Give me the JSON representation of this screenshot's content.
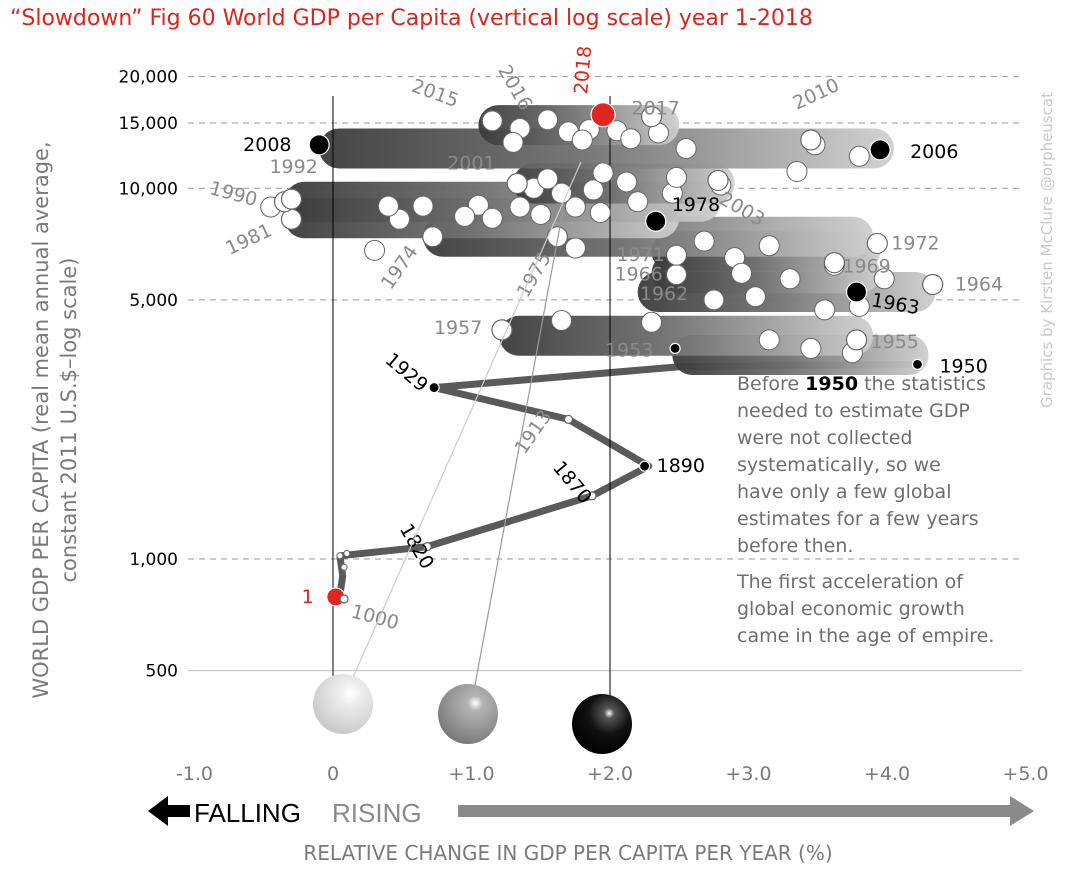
{
  "title": "“Slowdown” Fig 60 World GDP per Capita (vertical log scale) year 1-2018",
  "colors": {
    "title": "#d9251d",
    "highlight": "#d9251d",
    "axis_text": "#7a7a7a",
    "tube_dark": "#3a3a3a",
    "tube_light": "#bdbdbd",
    "arrow": "#8a8a8a"
  },
  "credit": "Graphics by Kirsten McClure @orpheuscat",
  "legend": {
    "falling": "FALLING",
    "rising": "RISING"
  },
  "annotation": {
    "line1_pre": "Before ",
    "line1_bold": "1950",
    "line1_post": " the statistics",
    "lines": [
      "needed to estimate GDP",
      "were not collected",
      "systematically, so we",
      "have only a few global",
      "estimates for a few years",
      "before then."
    ],
    "para2": [
      "The first acceleration of",
      "global economic growth",
      "came in the age of empire."
    ]
  },
  "chart_data": {
    "type": "scatter",
    "title": "“Slowdown” Fig 60 World GDP per Capita (vertical log scale) year 1-2018",
    "xlabel": "RELATIVE CHANGE IN GDP PER CAPITA PER YEAR (%)",
    "ylabel": "WORLD GDP PER CAPITA (real mean annual average, constant 2011 U.S.$–log scale)",
    "ylabel_line1": "WORLD GDP PER CAPITA (real mean annual average,",
    "ylabel_line2": "constant 2011 U.S.$–log scale)",
    "y_scale": "log",
    "xlim": [
      -1.0,
      5.0
    ],
    "ylim": [
      400,
      20000
    ],
    "x_ticks": [
      -1.0,
      0,
      1.0,
      2.0,
      3.0,
      4.0,
      5.0
    ],
    "x_tick_labels": [
      "-1.0",
      "0",
      "+1.0",
      "+2.0",
      "+3.0",
      "+4.0",
      "+5.0"
    ],
    "y_ticks": [
      20000,
      15000,
      10000,
      5000,
      1000,
      500
    ],
    "y_tick_labels": [
      "20,000",
      "15,000",
      "10,000",
      "5,000",
      "1,000",
      "500"
    ],
    "grid": "horizontal dashed",
    "reference_lines": [
      0.0,
      2.0
    ],
    "labeled_points": [
      {
        "label": "1",
        "x": 0.02,
        "y": 790,
        "style": "red"
      },
      {
        "label": "1000",
        "x": 0.08,
        "y": 780,
        "style": "open"
      },
      {
        "label": "1820",
        "x": 0.68,
        "y": 1080,
        "style": "open"
      },
      {
        "label": "1870",
        "x": 1.87,
        "y": 1480,
        "style": "open"
      },
      {
        "label": "1890",
        "x": 2.25,
        "y": 1780,
        "style": "closed"
      },
      {
        "label": "1913",
        "x": 1.7,
        "y": 2380,
        "style": "open"
      },
      {
        "label": "1929",
        "x": 0.73,
        "y": 2900,
        "style": "closed"
      },
      {
        "label": "1950",
        "x": 4.22,
        "y": 3350,
        "style": "closed"
      },
      {
        "label": "1953",
        "x": 2.47,
        "y": 3700,
        "style": "closed"
      },
      {
        "label": "1955",
        "x": 3.78,
        "y": 3900,
        "style": "open"
      },
      {
        "label": "1957",
        "x": 1.22,
        "y": 4150,
        "style": "open"
      },
      {
        "label": "1962",
        "x": 2.75,
        "y": 5000,
        "style": "open"
      },
      {
        "label": "1963",
        "x": 3.78,
        "y": 5250,
        "style": "closed"
      },
      {
        "label": "1964",
        "x": 4.33,
        "y": 5500,
        "style": "open"
      },
      {
        "label": "1966",
        "x": 2.48,
        "y": 5850,
        "style": "open"
      },
      {
        "label": "1969",
        "x": 3.62,
        "y": 6300,
        "style": "open"
      },
      {
        "label": "1971",
        "x": 2.48,
        "y": 6600,
        "style": "open"
      },
      {
        "label": "1972",
        "x": 3.93,
        "y": 7100,
        "style": "open"
      },
      {
        "label": "1974",
        "x": 0.72,
        "y": 7400,
        "style": "open"
      },
      {
        "label": "1975",
        "x": 1.62,
        "y": 7400,
        "style": "open"
      },
      {
        "label": "1978",
        "x": 2.33,
        "y": 8150,
        "style": "closed"
      },
      {
        "label": "1981",
        "x": -0.3,
        "y": 8250,
        "style": "open"
      },
      {
        "label": "1990",
        "x": -0.35,
        "y": 9200,
        "style": "open"
      },
      {
        "label": "1992",
        "x": -0.3,
        "y": 9350,
        "style": "open"
      },
      {
        "label": "2001",
        "x": 1.33,
        "y": 10300,
        "style": "open"
      },
      {
        "label": "2003",
        "x": 2.78,
        "y": 10500,
        "style": "open"
      },
      {
        "label": "2006",
        "x": 3.95,
        "y": 12700,
        "style": "closed"
      },
      {
        "label": "2008",
        "x": -0.1,
        "y": 13100,
        "style": "closed"
      },
      {
        "label": "2010",
        "x": 3.45,
        "y": 13500,
        "style": "open"
      },
      {
        "label": "2015",
        "x": 1.15,
        "y": 15200,
        "style": "open"
      },
      {
        "label": "2016",
        "x": 1.55,
        "y": 15300,
        "style": "open"
      },
      {
        "label": "2017",
        "x": 2.3,
        "y": 15600,
        "style": "open"
      },
      {
        "label": "2018",
        "x": 1.95,
        "y": 15800,
        "style": "red"
      }
    ],
    "unlabeled_points": [
      {
        "x": 0.08,
        "y": 950
      },
      {
        "x": 0.05,
        "y": 1020
      },
      {
        "x": 0.1,
        "y": 1035
      },
      {
        "x": 0.48,
        "y": 8250
      },
      {
        "x": -0.45,
        "y": 8900
      },
      {
        "x": 0.4,
        "y": 8950
      },
      {
        "x": 0.65,
        "y": 8950
      },
      {
        "x": 1.05,
        "y": 9000
      },
      {
        "x": 1.35,
        "y": 8900
      },
      {
        "x": 1.75,
        "y": 8900
      },
      {
        "x": 0.95,
        "y": 8400
      },
      {
        "x": 1.15,
        "y": 8300
      },
      {
        "x": 1.5,
        "y": 8500
      },
      {
        "x": 1.93,
        "y": 8600
      },
      {
        "x": 2.2,
        "y": 9200
      },
      {
        "x": 2.45,
        "y": 9700
      },
      {
        "x": 2.8,
        "y": 10200
      },
      {
        "x": 1.65,
        "y": 9700
      },
      {
        "x": 1.45,
        "y": 10000
      },
      {
        "x": 1.88,
        "y": 9900
      },
      {
        "x": 2.12,
        "y": 10400
      },
      {
        "x": 2.48,
        "y": 10700
      },
      {
        "x": 1.55,
        "y": 10600
      },
      {
        "x": 1.95,
        "y": 11000
      },
      {
        "x": 0.3,
        "y": 6800
      },
      {
        "x": 1.75,
        "y": 6900
      },
      {
        "x": 2.68,
        "y": 7200
      },
      {
        "x": 3.15,
        "y": 7000
      },
      {
        "x": 2.9,
        "y": 6500
      },
      {
        "x": 3.62,
        "y": 6200
      },
      {
        "x": 2.95,
        "y": 5900
      },
      {
        "x": 3.3,
        "y": 5700
      },
      {
        "x": 3.98,
        "y": 5700
      },
      {
        "x": 3.05,
        "y": 5100
      },
      {
        "x": 3.55,
        "y": 4700
      },
      {
        "x": 3.8,
        "y": 4800
      },
      {
        "x": 1.65,
        "y": 4400
      },
      {
        "x": 2.3,
        "y": 4350
      },
      {
        "x": 3.15,
        "y": 3900
      },
      {
        "x": 3.45,
        "y": 3700
      },
      {
        "x": 3.75,
        "y": 3600
      },
      {
        "x": 1.35,
        "y": 14500
      },
      {
        "x": 1.7,
        "y": 14200
      },
      {
        "x": 1.85,
        "y": 14400
      },
      {
        "x": 2.05,
        "y": 14300
      },
      {
        "x": 2.35,
        "y": 14100
      },
      {
        "x": 1.8,
        "y": 13500
      },
      {
        "x": 2.15,
        "y": 13600
      },
      {
        "x": 1.3,
        "y": 13300
      },
      {
        "x": 2.55,
        "y": 12800
      },
      {
        "x": 3.48,
        "y": 13100
      },
      {
        "x": 3.8,
        "y": 12200
      },
      {
        "x": 3.35,
        "y": 11100
      }
    ]
  }
}
